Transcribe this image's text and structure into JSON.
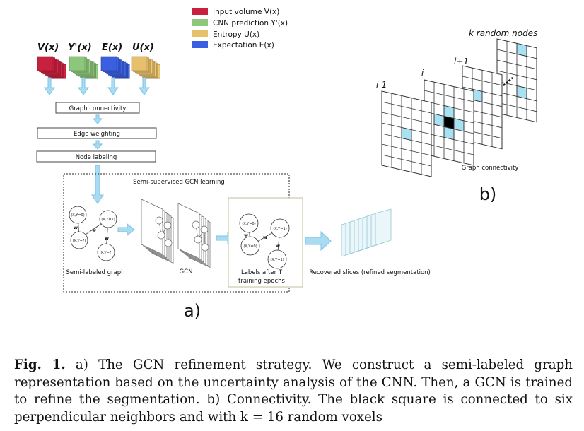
{
  "legend": [
    {
      "label": "Input volume V(x)",
      "color": "#c8213f"
    },
    {
      "label": "CNN prediction Y'(x)",
      "color": "#8dc77b"
    },
    {
      "label": "Entropy U(x)",
      "color": "#e6c06a"
    },
    {
      "label": "Expectation E(x)",
      "color": "#3a5fe0"
    }
  ],
  "volumes": [
    {
      "label": "V(x)",
      "color": "#c8213f"
    },
    {
      "label": "Y'(x)",
      "color": "#8dc77b"
    },
    {
      "label": "E(x)",
      "color": "#3a5fe0"
    },
    {
      "label": "U(x)",
      "color": "#e6c06a"
    }
  ],
  "steps": {
    "graph_connectivity": "Graph connectivity",
    "edge_weighting": "Edge weighting",
    "node_labeling": "Node labeling"
  },
  "gcn_panel": {
    "title": "Semi-supervised GCN learning",
    "semi_labeled_graph": "Semi-labeled graph",
    "gcn": "GCN",
    "labels_line1": "Labels after T",
    "labels_line2": "training epochs",
    "recovered": "Recovered slices (refined segmentation)",
    "node_y0": "(X,Y=0)",
    "node_y1": "(X,Y=1)",
    "node_yq": "(X,Y=?)",
    "edge_w": "w"
  },
  "panel_a_label": "a)",
  "panel_b": {
    "title": "k random nodes",
    "slice_prev": "i-1",
    "slice_cur": "i",
    "slice_next": "i+1",
    "caption": "Graph connectivity",
    "label": "b)"
  },
  "caption": {
    "fig_label": "Fig. 1.",
    "text": "a) The GCN refinement strategy. We construct a semi-labeled graph representation based on the uncertainty analysis of the CNN. Then, a GCN is trained to refine the segmentation. b) Connectivity. The black square is connected to six perpendicular neighbors and with k = 16 random voxels"
  }
}
